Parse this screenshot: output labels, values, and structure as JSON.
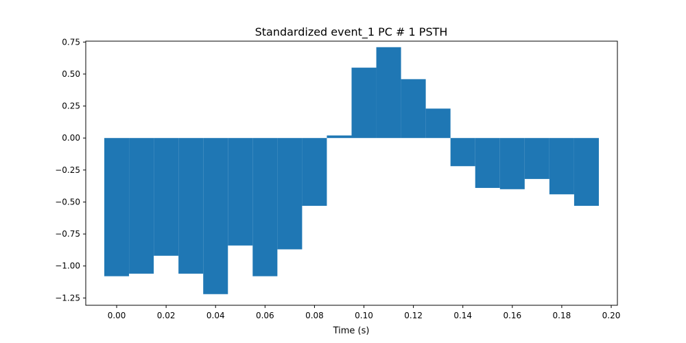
{
  "chart_data": {
    "type": "bar",
    "title": "Standardized event_1 PC # 1 PSTH",
    "xlabel": "Time (s)",
    "ylabel": "",
    "bar_width": 0.01,
    "x": [
      0.0,
      0.01,
      0.02,
      0.03,
      0.04,
      0.05,
      0.06,
      0.07,
      0.08,
      0.09,
      0.1,
      0.11,
      0.12,
      0.13,
      0.14,
      0.15,
      0.16,
      0.17,
      0.18,
      0.19
    ],
    "values": [
      -1.08,
      -1.06,
      -0.92,
      -1.06,
      -1.22,
      -0.84,
      -1.08,
      -0.87,
      -0.53,
      0.02,
      0.55,
      0.71,
      0.46,
      0.23,
      -0.22,
      -0.39,
      -0.4,
      -0.32,
      -0.44,
      -0.53
    ],
    "xlim": [
      -0.0125,
      0.2025
    ],
    "ylim": [
      -1.307,
      0.757
    ],
    "xticks": [
      0.0,
      0.02,
      0.04,
      0.06,
      0.08,
      0.1,
      0.12,
      0.14,
      0.16,
      0.18,
      0.2
    ],
    "xtick_labels": [
      "0.00",
      "0.02",
      "0.04",
      "0.06",
      "0.08",
      "0.10",
      "0.12",
      "0.14",
      "0.16",
      "0.18",
      "0.20"
    ],
    "yticks": [
      0.75,
      0.5,
      0.25,
      0.0,
      -0.25,
      -0.5,
      -0.75,
      -1.0,
      -1.25
    ],
    "ytick_labels": [
      "0.75",
      "0.50",
      "0.25",
      "0.00",
      "−0.25",
      "−0.50",
      "−0.75",
      "−1.00",
      "−1.25"
    ],
    "grid": false,
    "bar_color": "#1f77b4"
  }
}
